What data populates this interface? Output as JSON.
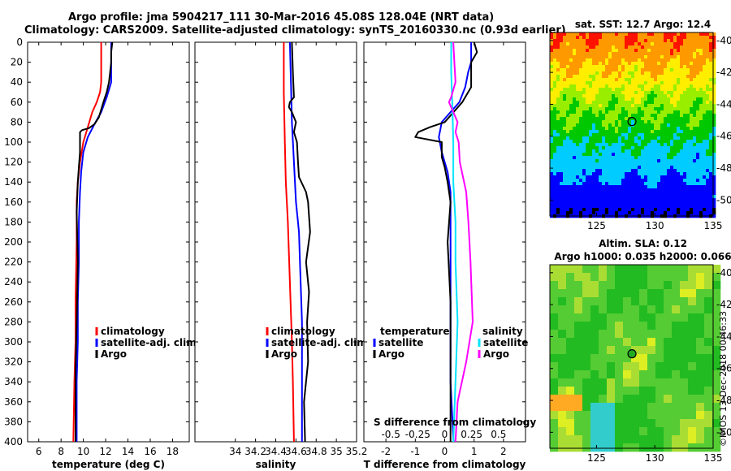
{
  "header": {
    "title_line1": "Argo profile: jma 5904217_111 30-Mar-2016 45.08S 128.04E (NRT data)",
    "title_line2": "Climatology: CARS2009. Satellite-adjusted climatology: synTS_20160330.nc (0.93d earlier)"
  },
  "watermark": "©IMOS 13-Dec-2018 00:46:33",
  "colors": {
    "climatology": "#ff0000",
    "satellite": "#0000ff",
    "argo": "#000000",
    "sal_satellite": "#00e5ff",
    "sal_argo": "#ff00ff"
  },
  "chart_data": [
    {
      "id": "temperature",
      "type": "line",
      "xlabel": "temperature (deg C)",
      "ylabel": "depth",
      "xlim": [
        5,
        19.5
      ],
      "ylim": [
        400,
        0
      ],
      "xticks": [
        6,
        8,
        10,
        12,
        14,
        16,
        18
      ],
      "yticks": [
        0,
        20,
        40,
        60,
        80,
        100,
        120,
        140,
        160,
        180,
        200,
        220,
        240,
        260,
        280,
        300,
        320,
        340,
        360,
        380,
        400
      ],
      "legend": [
        "climatology",
        "satellite-adj. clim.",
        "Argo"
      ],
      "series": [
        {
          "name": "climatology",
          "color": "#ff0000",
          "points": [
            [
              11.6,
              0
            ],
            [
              11.6,
              20
            ],
            [
              11.6,
              40
            ],
            [
              11.5,
              50
            ],
            [
              11.2,
              60
            ],
            [
              10.8,
              70
            ],
            [
              10.4,
              85
            ],
            [
              10.0,
              100
            ],
            [
              9.7,
              120
            ],
            [
              9.5,
              140
            ],
            [
              9.4,
              160
            ],
            [
              9.4,
              200
            ],
            [
              9.3,
              260
            ],
            [
              9.3,
              300
            ],
            [
              9.2,
              340
            ],
            [
              9.1,
              400
            ]
          ]
        },
        {
          "name": "satellite-adj. clim.",
          "color": "#0000ff",
          "points": [
            [
              12.5,
              0
            ],
            [
              12.5,
              20
            ],
            [
              12.5,
              40
            ],
            [
              12.1,
              55
            ],
            [
              11.6,
              70
            ],
            [
              11.0,
              82
            ],
            [
              10.4,
              95
            ],
            [
              10.0,
              110
            ],
            [
              9.8,
              130
            ],
            [
              9.7,
              150
            ],
            [
              9.6,
              180
            ],
            [
              9.6,
              220
            ],
            [
              9.5,
              260
            ],
            [
              9.5,
              300
            ],
            [
              9.4,
              340
            ],
            [
              9.4,
              400
            ]
          ]
        },
        {
          "name": "Argo",
          "color": "#000000",
          "points": [
            [
              12.6,
              0
            ],
            [
              12.5,
              10
            ],
            [
              12.5,
              20
            ],
            [
              12.4,
              30
            ],
            [
              12.3,
              40
            ],
            [
              12.1,
              50
            ],
            [
              11.8,
              60
            ],
            [
              11.4,
              75
            ],
            [
              11.0,
              82
            ],
            [
              10.5,
              86
            ],
            [
              9.9,
              88
            ],
            [
              9.7,
              90
            ],
            [
              9.7,
              110
            ],
            [
              9.6,
              125
            ],
            [
              9.5,
              140
            ],
            [
              9.4,
              170
            ],
            [
              9.5,
              220
            ],
            [
              9.4,
              280
            ],
            [
              9.3,
              330
            ],
            [
              9.3,
              400
            ]
          ]
        }
      ]
    },
    {
      "id": "salinity",
      "type": "line",
      "xlabel": "salinity",
      "ylabel": "depth",
      "xlim": [
        33.6,
        35.2
      ],
      "ylim": [
        400,
        0
      ],
      "xticks": [
        34,
        34.2,
        34.4,
        34.6,
        34.8,
        35,
        35.2
      ],
      "xticklabels": [
        "34",
        "34.2",
        "34.4",
        "34.6",
        "34.8",
        "35",
        "35.2"
      ],
      "legend": [
        "climatology",
        "satellite-adj. clim.",
        "Argo"
      ],
      "series": [
        {
          "name": "climatology",
          "color": "#ff0000",
          "points": [
            [
              34.48,
              0
            ],
            [
              34.48,
              50
            ],
            [
              34.49,
              100
            ],
            [
              34.5,
              140
            ],
            [
              34.52,
              180
            ],
            [
              34.54,
              240
            ],
            [
              34.56,
              300
            ],
            [
              34.57,
              340
            ],
            [
              34.58,
              400
            ]
          ]
        },
        {
          "name": "satellite-adj. clim.",
          "color": "#0000ff",
          "points": [
            [
              34.54,
              0
            ],
            [
              34.55,
              40
            ],
            [
              34.56,
              80
            ],
            [
              34.58,
              120
            ],
            [
              34.6,
              160
            ],
            [
              34.63,
              190
            ],
            [
              34.64,
              220
            ],
            [
              34.66,
              280
            ],
            [
              34.66,
              340
            ],
            [
              34.66,
              400
            ]
          ]
        },
        {
          "name": "Argo",
          "color": "#000000",
          "points": [
            [
              34.56,
              0
            ],
            [
              34.57,
              30
            ],
            [
              34.58,
              55
            ],
            [
              34.54,
              60
            ],
            [
              34.53,
              65
            ],
            [
              34.56,
              70
            ],
            [
              34.6,
              80
            ],
            [
              34.58,
              90
            ],
            [
              34.61,
              100
            ],
            [
              34.62,
              120
            ],
            [
              34.63,
              135
            ],
            [
              34.7,
              150
            ],
            [
              34.72,
              160
            ],
            [
              34.74,
              190
            ],
            [
              34.7,
              220
            ],
            [
              34.73,
              250
            ],
            [
              34.71,
              280
            ],
            [
              34.72,
              320
            ],
            [
              34.68,
              360
            ],
            [
              34.69,
              400
            ]
          ]
        }
      ]
    },
    {
      "id": "difference",
      "type": "line",
      "xlabel": "T difference from climatology",
      "top_label": "S difference from climatology",
      "xlim": [
        -2.75,
        2.75
      ],
      "ylim": [
        400,
        0
      ],
      "xticks": [
        -2,
        -1,
        0,
        1,
        2
      ],
      "xticklabels": [
        "-2",
        "-1",
        "0",
        "1",
        "2"
      ],
      "top_ticks": [
        -0.5,
        -0.25,
        0,
        0.25,
        0.5
      ],
      "top_ticklabels": [
        "-0.5",
        "-0.25",
        "0",
        "0.25",
        "0.5"
      ],
      "legend_temperature": {
        "title": "temperature",
        "items": [
          "satellite",
          "Argo"
        ]
      },
      "legend_salinity": {
        "title": "salinity",
        "items": [
          "satellite",
          "Argo"
        ]
      },
      "series": [
        {
          "name": "T satellite",
          "color": "#0000ff",
          "points": [
            [
              0.9,
              0
            ],
            [
              0.9,
              15
            ],
            [
              0.9,
              20
            ],
            [
              0.8,
              30
            ],
            [
              0.7,
              45
            ],
            [
              0.5,
              60
            ],
            [
              0.2,
              70
            ],
            [
              -0.1,
              80
            ],
            [
              -0.2,
              95
            ],
            [
              -0.1,
              110
            ],
            [
              0.1,
              130
            ],
            [
              0.2,
              150
            ],
            [
              0.2,
              200
            ],
            [
              0.2,
              280
            ],
            [
              0.2,
              340
            ],
            [
              0.3,
              400
            ]
          ]
        },
        {
          "name": "T Argo",
          "color": "#000000",
          "points": [
            [
              1.0,
              0
            ],
            [
              1.1,
              10
            ],
            [
              0.9,
              20
            ],
            [
              0.9,
              30
            ],
            [
              0.9,
              45
            ],
            [
              0.6,
              60
            ],
            [
              0.3,
              70
            ],
            [
              0.0,
              80
            ],
            [
              -0.5,
              85
            ],
            [
              -0.9,
              90
            ],
            [
              -1.0,
              95
            ],
            [
              -0.1,
              100
            ],
            [
              -0.1,
              115
            ],
            [
              0.0,
              125
            ],
            [
              0.1,
              140
            ],
            [
              0.2,
              160
            ],
            [
              0.1,
              200
            ],
            [
              0.2,
              260
            ],
            [
              0.2,
              300
            ],
            [
              0.2,
              340
            ],
            [
              0.2,
              400
            ]
          ]
        },
        {
          "name": "S satellite",
          "color": "#00e5ff",
          "points": [
            [
              0.06,
              0
            ],
            [
              0.06,
              30
            ],
            [
              0.07,
              60
            ],
            [
              0.08,
              100
            ],
            [
              0.08,
              140
            ],
            [
              0.1,
              180
            ],
            [
              0.1,
              220
            ],
            [
              0.12,
              280
            ],
            [
              0.1,
              340
            ],
            [
              0.08,
              400
            ]
          ]
        },
        {
          "name": "S Argo",
          "color": "#ff00ff",
          "points": [
            [
              0.08,
              0
            ],
            [
              0.09,
              20
            ],
            [
              0.1,
              40
            ],
            [
              0.06,
              55
            ],
            [
              0.04,
              60
            ],
            [
              0.08,
              70
            ],
            [
              0.12,
              80
            ],
            [
              0.1,
              90
            ],
            [
              0.13,
              100
            ],
            [
              0.14,
              120
            ],
            [
              0.2,
              150
            ],
            [
              0.22,
              180
            ],
            [
              0.24,
              220
            ],
            [
              0.26,
              280
            ],
            [
              0.2,
              320
            ],
            [
              0.12,
              360
            ],
            [
              0.1,
              400
            ]
          ]
        }
      ]
    },
    {
      "id": "sst_map",
      "type": "heatmap",
      "title": "sat. SST: 12.7 Argo: 12.4",
      "xlim": [
        121,
        135
      ],
      "ylim": [
        -51,
        -39.5
      ],
      "xticks": [
        125,
        130,
        135
      ],
      "yticks": [
        -40,
        -42,
        -44,
        -46,
        -48,
        -50
      ],
      "marker": [
        128.04,
        -45.08
      ]
    },
    {
      "id": "sla_map",
      "type": "heatmap",
      "title": "Altim. SLA: 0.12",
      "subtitle": "Argo h1000: 0.035 h2000: 0.066",
      "xlim": [
        121,
        135
      ],
      "ylim": [
        -51,
        -39.5
      ],
      "xticks": [
        125,
        130,
        135
      ],
      "yticks": [
        -40,
        -42,
        -44,
        -46,
        -48,
        -50
      ],
      "marker": [
        128.04,
        -45.08
      ]
    }
  ]
}
